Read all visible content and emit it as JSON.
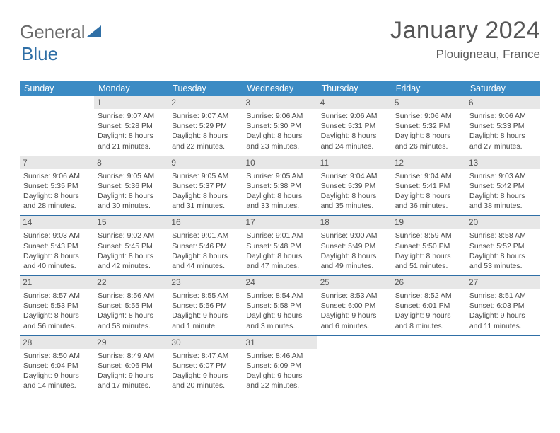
{
  "brand": {
    "part1": "General",
    "part2": "Blue"
  },
  "colors": {
    "header_bg": "#3b8bc4",
    "rule_color": "#2f6fa6",
    "daynum_bg": "#e7e7e7",
    "text": "#4a4a4a",
    "brand_gray": "#6a6a6a",
    "brand_blue": "#2f6fa6"
  },
  "title": "January 2024",
  "location": "Plouigneau, France",
  "weekdays": [
    "Sunday",
    "Monday",
    "Tuesday",
    "Wednesday",
    "Thursday",
    "Friday",
    "Saturday"
  ],
  "weeks": [
    [
      null,
      {
        "n": "1",
        "sr": "9:07 AM",
        "ss": "5:28 PM",
        "dl": "8 hours and 21 minutes."
      },
      {
        "n": "2",
        "sr": "9:07 AM",
        "ss": "5:29 PM",
        "dl": "8 hours and 22 minutes."
      },
      {
        "n": "3",
        "sr": "9:06 AM",
        "ss": "5:30 PM",
        "dl": "8 hours and 23 minutes."
      },
      {
        "n": "4",
        "sr": "9:06 AM",
        "ss": "5:31 PM",
        "dl": "8 hours and 24 minutes."
      },
      {
        "n": "5",
        "sr": "9:06 AM",
        "ss": "5:32 PM",
        "dl": "8 hours and 26 minutes."
      },
      {
        "n": "6",
        "sr": "9:06 AM",
        "ss": "5:33 PM",
        "dl": "8 hours and 27 minutes."
      }
    ],
    [
      {
        "n": "7",
        "sr": "9:06 AM",
        "ss": "5:35 PM",
        "dl": "8 hours and 28 minutes."
      },
      {
        "n": "8",
        "sr": "9:05 AM",
        "ss": "5:36 PM",
        "dl": "8 hours and 30 minutes."
      },
      {
        "n": "9",
        "sr": "9:05 AM",
        "ss": "5:37 PM",
        "dl": "8 hours and 31 minutes."
      },
      {
        "n": "10",
        "sr": "9:05 AM",
        "ss": "5:38 PM",
        "dl": "8 hours and 33 minutes."
      },
      {
        "n": "11",
        "sr": "9:04 AM",
        "ss": "5:39 PM",
        "dl": "8 hours and 35 minutes."
      },
      {
        "n": "12",
        "sr": "9:04 AM",
        "ss": "5:41 PM",
        "dl": "8 hours and 36 minutes."
      },
      {
        "n": "13",
        "sr": "9:03 AM",
        "ss": "5:42 PM",
        "dl": "8 hours and 38 minutes."
      }
    ],
    [
      {
        "n": "14",
        "sr": "9:03 AM",
        "ss": "5:43 PM",
        "dl": "8 hours and 40 minutes."
      },
      {
        "n": "15",
        "sr": "9:02 AM",
        "ss": "5:45 PM",
        "dl": "8 hours and 42 minutes."
      },
      {
        "n": "16",
        "sr": "9:01 AM",
        "ss": "5:46 PM",
        "dl": "8 hours and 44 minutes."
      },
      {
        "n": "17",
        "sr": "9:01 AM",
        "ss": "5:48 PM",
        "dl": "8 hours and 47 minutes."
      },
      {
        "n": "18",
        "sr": "9:00 AM",
        "ss": "5:49 PM",
        "dl": "8 hours and 49 minutes."
      },
      {
        "n": "19",
        "sr": "8:59 AM",
        "ss": "5:50 PM",
        "dl": "8 hours and 51 minutes."
      },
      {
        "n": "20",
        "sr": "8:58 AM",
        "ss": "5:52 PM",
        "dl": "8 hours and 53 minutes."
      }
    ],
    [
      {
        "n": "21",
        "sr": "8:57 AM",
        "ss": "5:53 PM",
        "dl": "8 hours and 56 minutes."
      },
      {
        "n": "22",
        "sr": "8:56 AM",
        "ss": "5:55 PM",
        "dl": "8 hours and 58 minutes."
      },
      {
        "n": "23",
        "sr": "8:55 AM",
        "ss": "5:56 PM",
        "dl": "9 hours and 1 minute."
      },
      {
        "n": "24",
        "sr": "8:54 AM",
        "ss": "5:58 PM",
        "dl": "9 hours and 3 minutes."
      },
      {
        "n": "25",
        "sr": "8:53 AM",
        "ss": "6:00 PM",
        "dl": "9 hours and 6 minutes."
      },
      {
        "n": "26",
        "sr": "8:52 AM",
        "ss": "6:01 PM",
        "dl": "9 hours and 8 minutes."
      },
      {
        "n": "27",
        "sr": "8:51 AM",
        "ss": "6:03 PM",
        "dl": "9 hours and 11 minutes."
      }
    ],
    [
      {
        "n": "28",
        "sr": "8:50 AM",
        "ss": "6:04 PM",
        "dl": "9 hours and 14 minutes."
      },
      {
        "n": "29",
        "sr": "8:49 AM",
        "ss": "6:06 PM",
        "dl": "9 hours and 17 minutes."
      },
      {
        "n": "30",
        "sr": "8:47 AM",
        "ss": "6:07 PM",
        "dl": "9 hours and 20 minutes."
      },
      {
        "n": "31",
        "sr": "8:46 AM",
        "ss": "6:09 PM",
        "dl": "9 hours and 22 minutes."
      },
      null,
      null,
      null
    ]
  ],
  "labels": {
    "sunrise": "Sunrise: ",
    "sunset": "Sunset: ",
    "daylight": "Daylight: "
  }
}
